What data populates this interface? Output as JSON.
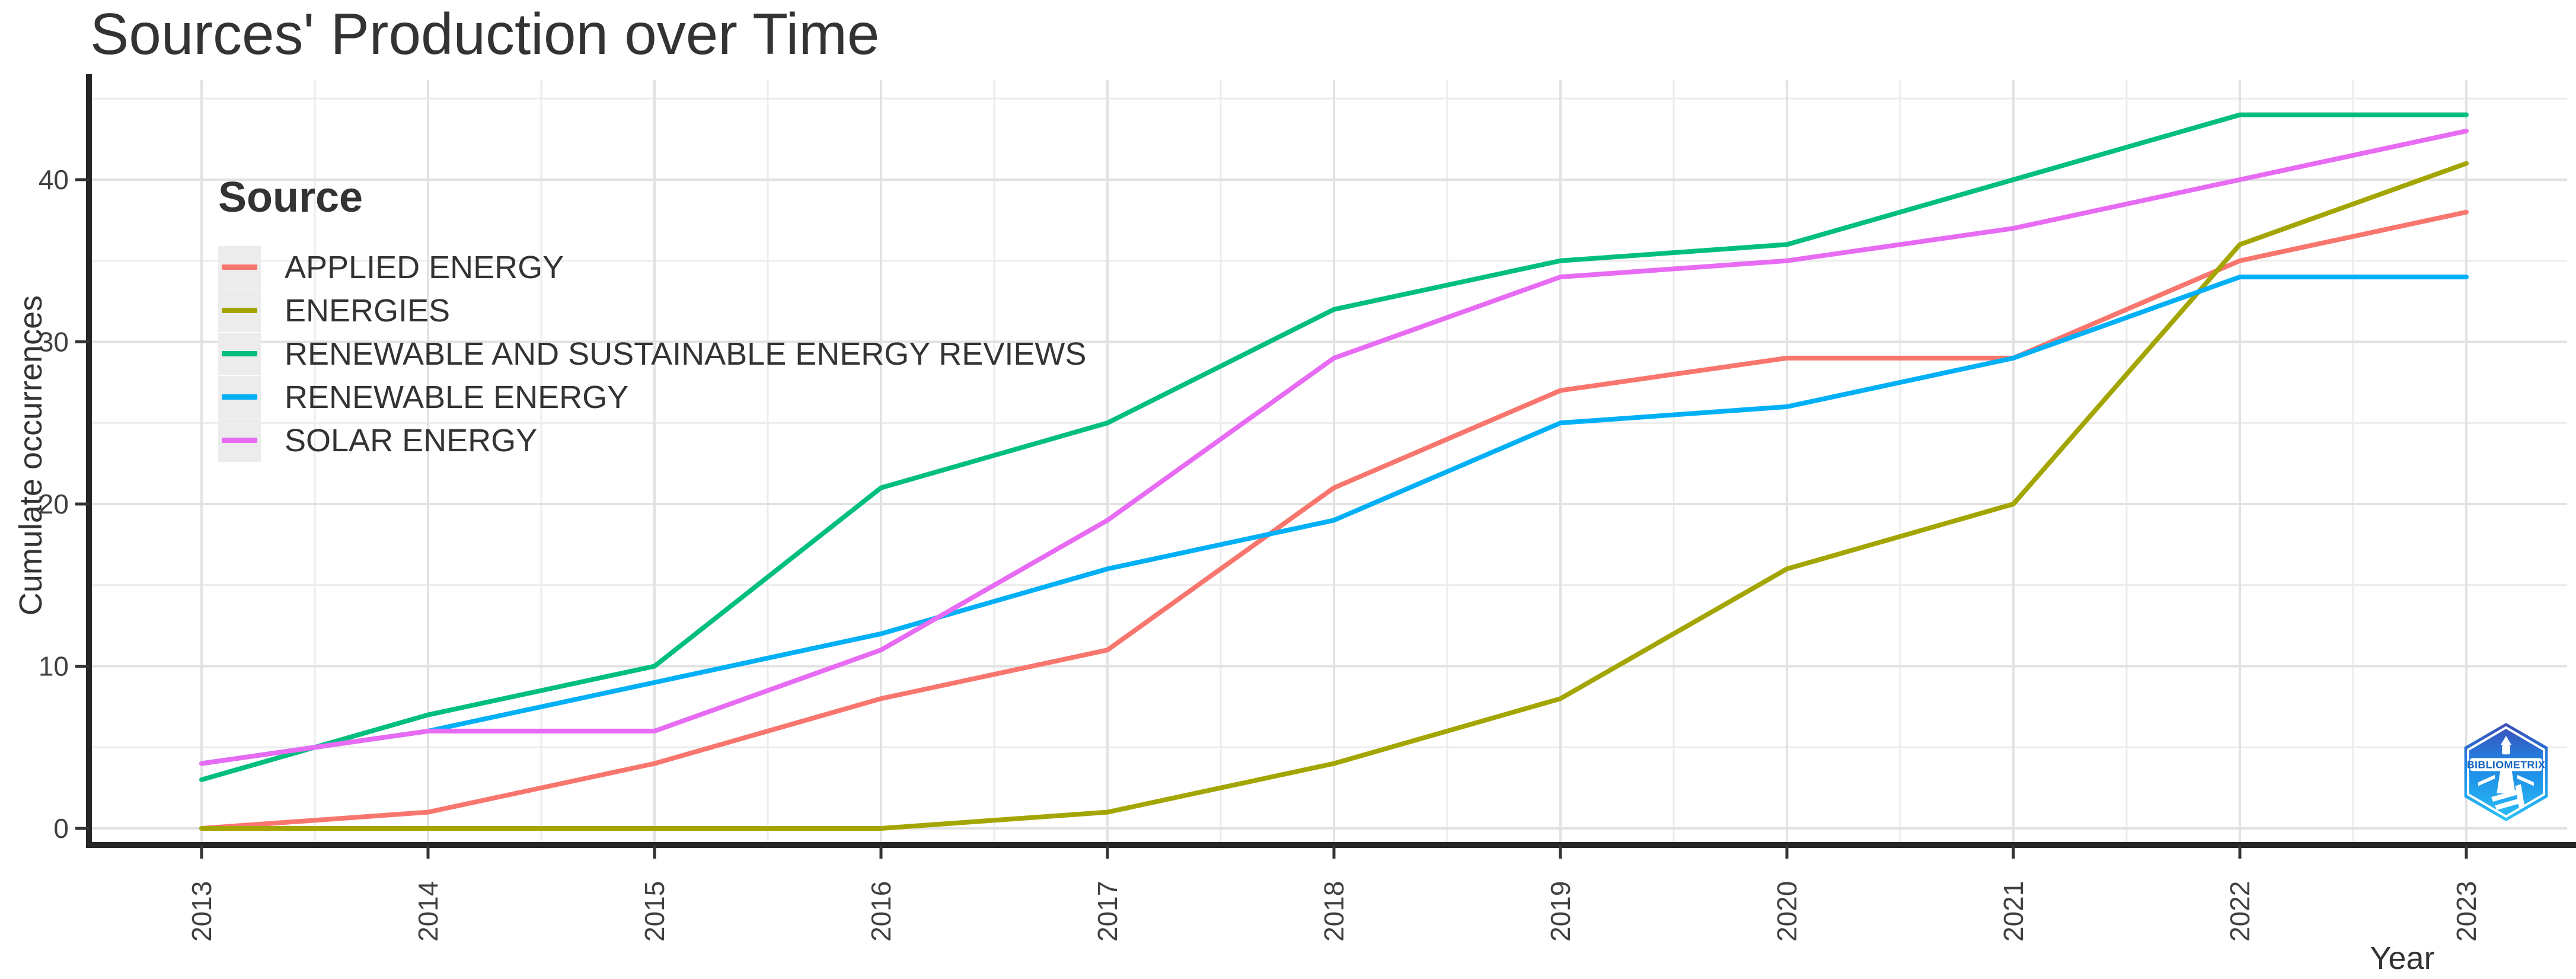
{
  "title": "Sources' Production over Time",
  "axes": {
    "x_label": "Year",
    "y_label": "Cumulate occurrences",
    "y_ticks": [
      0,
      10,
      20,
      30,
      40
    ],
    "y_minor_ticks": [
      5,
      15,
      25,
      35,
      45
    ]
  },
  "legend": {
    "title": "Source"
  },
  "logo": {
    "text": "BIBLIOMETRIX"
  },
  "colors": {
    "applied_energy": "#F8766D",
    "energies": "#A3A500",
    "renewable_sustainable_reviews": "#00BF7D",
    "renewable_energy": "#00B0F6",
    "solar_energy": "#E76BF3",
    "gridline_major": "#E2E2E2",
    "gridline_minor": "#ECECEC",
    "axis_line": "#262626",
    "tick_text": "#404040",
    "text": "#333333"
  },
  "chart_data": {
    "type": "line",
    "title": "Sources' Production over Time",
    "xlabel": "Year",
    "ylabel": "Cumulate occurrences",
    "x": [
      2013,
      2014,
      2015,
      2016,
      2017,
      2018,
      2019,
      2020,
      2021,
      2022,
      2023
    ],
    "series": [
      {
        "name": "APPLIED ENERGY",
        "color": "#F8766D",
        "values": [
          0,
          1,
          4,
          8,
          11,
          21,
          27,
          29,
          29,
          35,
          38
        ]
      },
      {
        "name": "ENERGIES",
        "color": "#A3A500",
        "values": [
          0,
          0,
          0,
          0,
          1,
          4,
          8,
          16,
          20,
          36,
          41
        ]
      },
      {
        "name": "RENEWABLE AND SUSTAINABLE ENERGY REVIEWS",
        "color": "#00BF7D",
        "values": [
          3,
          7,
          10,
          21,
          25,
          32,
          35,
          36,
          40,
          44,
          44
        ]
      },
      {
        "name": "RENEWABLE ENERGY",
        "color": "#00B0F6",
        "values": [
          4,
          6,
          9,
          12,
          16,
          19,
          25,
          26,
          29,
          34,
          34
        ]
      },
      {
        "name": "SOLAR ENERGY",
        "color": "#E76BF3",
        "values": [
          4,
          6,
          6,
          11,
          19,
          29,
          34,
          35,
          37,
          40,
          43
        ]
      }
    ],
    "ylim": [
      0,
      44
    ],
    "y_major_gridlines": [
      0,
      10,
      20,
      30,
      40
    ],
    "y_minor_gridlines": [
      5,
      15,
      25,
      35,
      45
    ],
    "grid": "major and minor, light gray on white panel",
    "legend_position": "inside top-left"
  }
}
